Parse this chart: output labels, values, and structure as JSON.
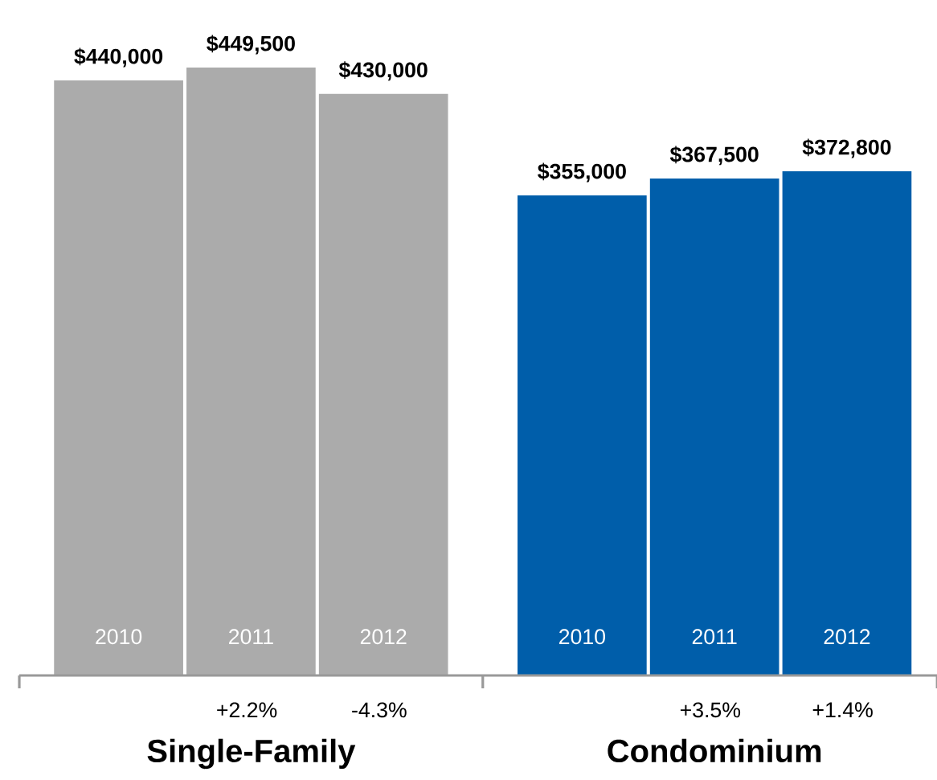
{
  "chart_data": {
    "type": "bar",
    "categories": [
      "2010",
      "2011",
      "2012",
      "2010",
      "2011",
      "2012"
    ],
    "values": [
      440000,
      449500,
      430000,
      355000,
      367500,
      372800
    ],
    "value_labels": [
      "$440,000",
      "$449,500",
      "$430,000",
      "$355,000",
      "$367,500",
      "$372,800"
    ],
    "colors": [
      "#ababab",
      "#ababab",
      "#ababab",
      "#005eaa",
      "#005eaa",
      "#005eaa"
    ],
    "annotations": [
      "+2.2%",
      "-4.3%",
      "+3.5%",
      "+1.4%",
      "Single-Family",
      "Condominium"
    ]
  }
}
